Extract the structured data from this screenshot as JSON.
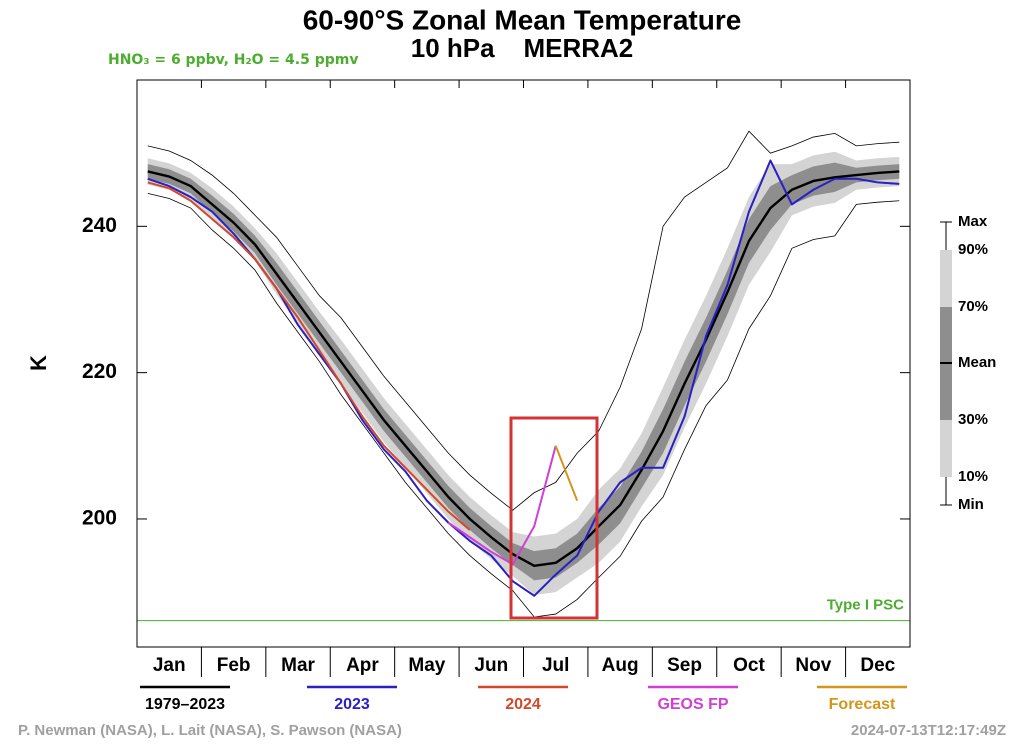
{
  "chart_data": {
    "type": "line",
    "title": "60-90°S Zonal Mean Temperature",
    "subtitle": "10 hPa    MERRA2",
    "note": "HNO₃ = 6 ppbv, H₂O = 4.5 ppmv",
    "y_label": "K",
    "categories": [
      null,
      "Jan",
      null,
      null,
      "Feb",
      null,
      null,
      "Mar",
      null,
      null,
      "Apr",
      null,
      null,
      "May",
      null,
      null,
      "Jun",
      null,
      null,
      "Jul",
      null,
      null,
      "Aug",
      null,
      null,
      "Sep",
      null,
      null,
      "Oct",
      null,
      null,
      "Nov",
      null,
      null,
      "Dec",
      null
    ],
    "ylim": [
      182.5,
      260
    ],
    "yticks": [
      200,
      220,
      240
    ],
    "series": [
      {
        "name": "1979–2023",
        "color": "#000000",
        "values": [
          247.5,
          246.8,
          245.5,
          243,
          240.5,
          237.5,
          233.5,
          229.5,
          225.5,
          221.5,
          217.5,
          213.5,
          210,
          206.5,
          203,
          200,
          197.5,
          195.2,
          193.6,
          194,
          196,
          199,
          201.9,
          206.7,
          212,
          218.5,
          224.5,
          231,
          238,
          242.5,
          245,
          246.2,
          246.7,
          247,
          247.3,
          247.5
        ]
      },
      {
        "name": "2023",
        "color": "#2a1fc4",
        "values": [
          246.5,
          245.5,
          244,
          242,
          239,
          235.5,
          231.5,
          226.5,
          222.5,
          218.5,
          213.5,
          209.5,
          206.5,
          202.5,
          199.5,
          197,
          195,
          191.5,
          189.5,
          192.4,
          195,
          201,
          205,
          207,
          207,
          214,
          225,
          232,
          242,
          249,
          243,
          245,
          246.5,
          246.5,
          246,
          245.8
        ]
      },
      {
        "name": "2024",
        "color": "#d2492a",
        "values": [
          246,
          245.2,
          243.5,
          241,
          238.5,
          235.5,
          231.5,
          227.5,
          223,
          218.5,
          214,
          210,
          207,
          204,
          201,
          198.5,
          null,
          null,
          null,
          null,
          null,
          null,
          null,
          null,
          null,
          null,
          null,
          null,
          null,
          null,
          null,
          null,
          null,
          null,
          null,
          null
        ]
      },
      {
        "name": "GEOS FP",
        "color": "#d03fd6",
        "values": [
          null,
          null,
          null,
          null,
          null,
          null,
          null,
          null,
          null,
          null,
          null,
          null,
          null,
          null,
          199.5,
          197.5,
          195.5,
          193.8,
          199,
          210,
          null,
          null,
          null,
          null,
          null,
          null,
          null,
          null,
          null,
          null,
          null,
          null,
          null,
          null,
          null,
          null
        ]
      },
      {
        "name": "Forecast",
        "color": "#d3951a",
        "values": [
          null,
          null,
          null,
          null,
          null,
          null,
          null,
          null,
          null,
          null,
          null,
          null,
          null,
          null,
          null,
          null,
          null,
          null,
          null,
          210,
          202.5,
          null,
          null,
          null,
          null,
          null,
          null,
          null,
          null,
          null,
          null,
          null,
          null,
          null,
          null,
          null
        ]
      }
    ],
    "band_legend": [
      "Max",
      "90%",
      "70%",
      "Mean",
      "30%",
      "10%",
      "Min"
    ],
    "outer_band_color": "#d4d4d4",
    "inner_band_color": "#8e8e8e",
    "climatology": {
      "max": [
        251,
        250.3,
        249,
        247,
        244.5,
        241.5,
        238.5,
        234.5,
        230.5,
        227.5,
        223.5,
        219.5,
        216,
        212.5,
        209,
        206,
        203.5,
        201.2,
        203.6,
        205,
        209,
        212,
        218,
        226,
        240,
        244,
        246,
        248,
        253,
        250,
        251,
        252.2,
        252.7,
        251,
        251.3,
        251.5
      ],
      "p90": [
        249.3,
        248.6,
        247.3,
        245.2,
        242.7,
        239.7,
        236.3,
        232.3,
        228.3,
        224.5,
        220.5,
        216.5,
        213,
        209.5,
        206,
        203,
        200.5,
        198.2,
        197.6,
        198,
        200,
        204,
        206.9,
        211.7,
        218,
        224.5,
        230.5,
        237,
        244,
        248.5,
        248.5,
        249.7,
        250.2,
        249,
        249.3,
        249.5
      ],
      "p70": [
        248.5,
        247.8,
        246.5,
        244.2,
        241.7,
        238.7,
        235,
        231,
        227,
        223,
        219,
        215,
        211.5,
        208,
        204.5,
        201.5,
        199,
        196.7,
        195.6,
        196,
        198,
        201.5,
        204.4,
        209.2,
        215,
        221.5,
        227.5,
        234,
        241,
        245.5,
        247,
        248.2,
        248.7,
        248,
        248.3,
        248.5
      ],
      "p30": [
        246.5,
        245.8,
        244.5,
        241.8,
        239.3,
        236.3,
        232,
        228,
        224,
        220,
        216,
        212,
        208.5,
        205,
        201.5,
        198.5,
        196,
        193.7,
        191.6,
        192,
        194,
        196.5,
        199.4,
        204.2,
        209,
        215.5,
        221.5,
        228,
        235,
        239.5,
        243,
        244.2,
        244.7,
        246,
        246.3,
        246.5
      ],
      "p10": [
        245.7,
        245,
        243.7,
        240.8,
        238.3,
        235.3,
        230.7,
        226.7,
        222.7,
        218.5,
        214.5,
        210.5,
        207,
        203.5,
        200,
        197,
        194.5,
        192.2,
        189.6,
        190,
        192,
        194,
        196.9,
        201.7,
        206,
        212.5,
        218.5,
        225,
        232,
        236.5,
        241.5,
        242.7,
        243.2,
        245,
        245.3,
        245.5
      ],
      "min": [
        244.5,
        243.8,
        242.5,
        239.5,
        237,
        234,
        229.5,
        225.5,
        221.5,
        217,
        213,
        209,
        205,
        201.5,
        198,
        195,
        192.5,
        190.2,
        186.6,
        187,
        189,
        192,
        194.9,
        199.7,
        203,
        209.5,
        215.5,
        219,
        226,
        230.5,
        237,
        238.2,
        238.7,
        243,
        243.3,
        243.5
      ]
    },
    "psc": {
      "label": "Type I PSC",
      "value": 186.1,
      "color": "#4cae2e"
    },
    "credit": "P. Newman (NASA), L. Lait (NASA), S. Pawson (NASA)",
    "timestamp": "2024-07-13T12:17:49Z"
  }
}
